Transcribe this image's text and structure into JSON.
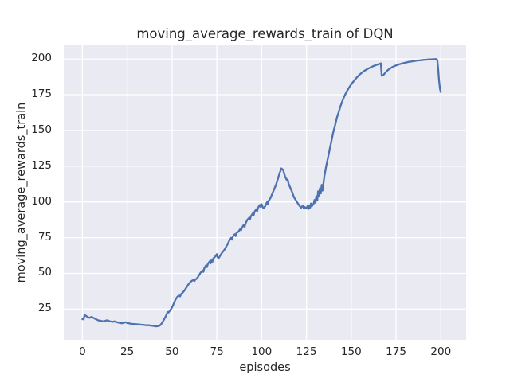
{
  "chart_data": {
    "type": "line",
    "title": "moving_average_rewards_train of DQN",
    "xlabel": "episodes",
    "ylabel": "moving_average_rewards_train",
    "series_name": "moving_average_rewards_train",
    "legend_position": "none",
    "grid": true,
    "xticks": [
      0,
      25,
      50,
      75,
      100,
      125,
      150,
      175,
      200
    ],
    "yticks": [
      25,
      50,
      75,
      100,
      125,
      150,
      175,
      200
    ],
    "xlim": [
      -10.4,
      214.1
    ],
    "ylim": [
      3.5,
      209.5
    ],
    "colors": {
      "line": "#4c72b0",
      "axes_background": "#eaeaf2",
      "grid": "#ffffff",
      "text": "#262626",
      "figure_background": "#ffffff"
    },
    "points": [
      [
        0,
        18.0
      ],
      [
        0.7,
        17.8
      ],
      [
        1.2,
        20.9
      ],
      [
        2,
        20.3
      ],
      [
        3,
        19.4
      ],
      [
        4,
        18.9
      ],
      [
        5,
        19.6
      ],
      [
        6,
        19.0
      ],
      [
        7,
        18.3
      ],
      [
        8,
        17.7
      ],
      [
        9,
        17.1
      ],
      [
        10,
        16.9
      ],
      [
        11,
        16.6
      ],
      [
        12,
        16.4
      ],
      [
        13,
        16.9
      ],
      [
        14,
        17.2
      ],
      [
        15,
        16.6
      ],
      [
        16,
        16.3
      ],
      [
        17,
        16.1
      ],
      [
        18,
        16.4
      ],
      [
        19,
        15.9
      ],
      [
        20,
        15.6
      ],
      [
        21,
        15.3
      ],
      [
        22,
        15.1
      ],
      [
        23,
        15.4
      ],
      [
        24,
        15.8
      ],
      [
        25,
        15.4
      ],
      [
        26,
        15.1
      ],
      [
        27,
        14.8
      ],
      [
        28,
        14.6
      ],
      [
        29,
        14.5
      ],
      [
        30,
        14.4
      ],
      [
        31,
        14.3
      ],
      [
        32,
        14.2
      ],
      [
        33,
        14.1
      ],
      [
        34,
        14.0
      ],
      [
        35,
        13.8
      ],
      [
        36,
        13.7
      ],
      [
        37,
        13.7
      ],
      [
        38,
        13.5
      ],
      [
        39,
        13.3
      ],
      [
        40,
        13.2
      ],
      [
        41,
        12.9
      ],
      [
        42,
        13.1
      ],
      [
        43,
        13.3
      ],
      [
        44,
        14.6
      ],
      [
        45,
        16.5
      ],
      [
        46,
        18.8
      ],
      [
        47,
        21.3
      ],
      [
        47.5,
        23.0
      ],
      [
        48,
        22.6
      ],
      [
        49,
        24.2
      ],
      [
        50,
        26.2
      ],
      [
        51,
        29.0
      ],
      [
        52,
        31.8
      ],
      [
        53,
        33.6
      ],
      [
        54,
        34.4
      ],
      [
        54.5,
        33.9
      ],
      [
        55,
        35.4
      ],
      [
        56,
        36.6
      ],
      [
        57,
        38.1
      ],
      [
        58,
        40.0
      ],
      [
        59,
        42.0
      ],
      [
        60,
        43.6
      ],
      [
        61,
        44.8
      ],
      [
        62,
        45.3
      ],
      [
        62.5,
        44.7
      ],
      [
        63,
        45.6
      ],
      [
        64,
        46.6
      ],
      [
        65,
        48.6
      ],
      [
        66,
        50.6
      ],
      [
        67,
        52.0
      ],
      [
        67.5,
        51.0
      ],
      [
        68,
        53.6
      ],
      [
        69,
        55.6
      ],
      [
        69.5,
        54.4
      ],
      [
        70,
        56.6
      ],
      [
        71,
        58.4
      ],
      [
        71.5,
        57.0
      ],
      [
        72,
        59.4
      ],
      [
        72.5,
        58.1
      ],
      [
        73,
        60.4
      ],
      [
        74,
        61.6
      ],
      [
        75,
        63.4
      ],
      [
        75.5,
        61.2
      ],
      [
        76,
        60.6
      ],
      [
        77,
        62.6
      ],
      [
        78,
        64.6
      ],
      [
        79,
        66.1
      ],
      [
        80,
        68.1
      ],
      [
        81,
        70.4
      ],
      [
        82,
        72.9
      ],
      [
        83,
        74.9
      ],
      [
        83.5,
        73.6
      ],
      [
        84,
        75.9
      ],
      [
        85,
        77.4
      ],
      [
        85.5,
        76.1
      ],
      [
        86,
        78.4
      ],
      [
        87,
        79.1
      ],
      [
        88,
        80.9
      ],
      [
        88.5,
        80.1
      ],
      [
        89,
        81.9
      ],
      [
        90,
        83.9
      ],
      [
        90.5,
        82.6
      ],
      [
        91,
        84.9
      ],
      [
        92,
        87.4
      ],
      [
        93,
        88.9
      ],
      [
        93.5,
        87.6
      ],
      [
        94,
        89.9
      ],
      [
        95,
        91.9
      ],
      [
        95.5,
        90.4
      ],
      [
        96,
        92.9
      ],
      [
        97,
        94.9
      ],
      [
        97.5,
        93.4
      ],
      [
        98,
        95.9
      ],
      [
        99,
        97.9
      ],
      [
        99.5,
        96.4
      ],
      [
        100,
        98.4
      ],
      [
        100.5,
        96.6
      ],
      [
        101,
        95.6
      ],
      [
        102,
        96.9
      ],
      [
        103,
        99.9
      ],
      [
        103.5,
        98.4
      ],
      [
        104,
        100.9
      ],
      [
        105,
        102.9
      ],
      [
        106,
        105.9
      ],
      [
        107,
        108.9
      ],
      [
        108,
        111.9
      ],
      [
        109,
        115.9
      ],
      [
        110,
        119.9
      ],
      [
        111,
        123.4
      ],
      [
        112,
        122.4
      ],
      [
        113,
        117.9
      ],
      [
        114,
        115.4
      ],
      [
        114.5,
        115.7
      ],
      [
        115,
        112.9
      ],
      [
        116,
        109.9
      ],
      [
        117,
        106.9
      ],
      [
        118,
        103.4
      ],
      [
        119,
        101.4
      ],
      [
        120,
        99.4
      ],
      [
        121,
        97.4
      ],
      [
        122,
        95.9
      ],
      [
        123,
        97.4
      ],
      [
        123.5,
        95.4
      ],
      [
        124,
        96.4
      ],
      [
        125,
        95.4
      ],
      [
        125.5,
        96.9
      ],
      [
        126,
        94.9
      ],
      [
        126.5,
        97.4
      ],
      [
        127,
        95.9
      ],
      [
        127.5,
        98.9
      ],
      [
        128,
        96.9
      ],
      [
        129,
        98.9
      ],
      [
        129.5,
        101.4
      ],
      [
        130,
        99.4
      ],
      [
        130.5,
        103.9
      ],
      [
        131,
        100.9
      ],
      [
        131.5,
        107.4
      ],
      [
        132,
        104.4
      ],
      [
        132.5,
        109.4
      ],
      [
        133,
        105.9
      ],
      [
        133.5,
        111.9
      ],
      [
        134,
        107.9
      ],
      [
        134.5,
        112.9
      ],
      [
        135,
        117.9
      ],
      [
        136,
        124.9
      ],
      [
        137,
        130.9
      ],
      [
        138,
        136.9
      ],
      [
        139,
        142.9
      ],
      [
        140,
        148.9
      ],
      [
        141,
        153.9
      ],
      [
        142,
        158.9
      ],
      [
        143,
        162.9
      ],
      [
        144,
        166.9
      ],
      [
        145,
        170.4
      ],
      [
        146,
        173.4
      ],
      [
        147,
        176.1
      ],
      [
        148,
        178.4
      ],
      [
        149,
        180.4
      ],
      [
        150,
        182.2
      ],
      [
        151,
        183.9
      ],
      [
        152,
        185.4
      ],
      [
        153,
        186.9
      ],
      [
        154,
        188.2
      ],
      [
        155,
        189.4
      ],
      [
        156,
        190.4
      ],
      [
        157,
        191.4
      ],
      [
        158,
        192.2
      ],
      [
        159,
        192.9
      ],
      [
        160,
        193.6
      ],
      [
        161,
        194.2
      ],
      [
        162,
        194.8
      ],
      [
        163,
        195.3
      ],
      [
        164,
        195.8
      ],
      [
        165,
        196.2
      ],
      [
        166,
        196.6
      ],
      [
        166.5,
        196.9
      ],
      [
        167,
        188.2
      ],
      [
        168,
        188.8
      ],
      [
        169,
        190.4
      ],
      [
        170,
        191.7
      ],
      [
        171,
        192.7
      ],
      [
        172,
        193.6
      ],
      [
        173,
        194.3
      ],
      [
        174,
        194.9
      ],
      [
        175,
        195.4
      ],
      [
        176,
        195.9
      ],
      [
        177,
        196.3
      ],
      [
        178,
        196.7
      ],
      [
        179,
        197.0
      ],
      [
        180,
        197.3
      ],
      [
        181,
        197.6
      ],
      [
        182,
        197.9
      ],
      [
        183,
        198.1
      ],
      [
        184,
        198.3
      ],
      [
        185,
        198.5
      ],
      [
        186,
        198.7
      ],
      [
        187,
        198.9
      ],
      [
        188,
        199.0
      ],
      [
        189,
        199.1
      ],
      [
        190,
        199.3
      ],
      [
        191,
        199.4
      ],
      [
        192,
        199.5
      ],
      [
        193,
        199.6
      ],
      [
        194,
        199.7
      ],
      [
        195,
        199.7
      ],
      [
        196,
        199.8
      ],
      [
        197,
        199.8
      ],
      [
        197.5,
        199.9
      ],
      [
        198,
        199.3
      ],
      [
        198.5,
        193.0
      ],
      [
        199,
        185.0
      ],
      [
        199.5,
        179.0
      ],
      [
        200,
        176.8
      ]
    ]
  }
}
